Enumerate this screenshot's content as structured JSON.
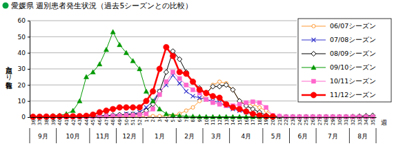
{
  "chart_data": {
    "type": "line",
    "title": "愛媛県 週別患者発生状況（過去5シーズンとの比較）",
    "y_label": "定点当たり報告数",
    "x_label": "週",
    "categories": [
      "36",
      "37",
      "38",
      "39",
      "40",
      "41",
      "42",
      "43",
      "44",
      "45",
      "46",
      "47",
      "48",
      "49",
      "50",
      "51",
      "52",
      "1",
      "2",
      "3",
      "4",
      "5",
      "6",
      "7",
      "8",
      "9",
      "10",
      "11",
      "12",
      "13",
      "14",
      "15",
      "16",
      "17",
      "18",
      "19",
      "20",
      "21",
      "22",
      "23",
      "24",
      "25",
      "26",
      "27",
      "28",
      "29",
      "30",
      "31",
      "32",
      "33",
      "34",
      "35"
    ],
    "month_groups": [
      {
        "label": "9月",
        "weeks": 4
      },
      {
        "label": "10月",
        "weeks": 5
      },
      {
        "label": "11月",
        "weeks": 4
      },
      {
        "label": "12月",
        "weeks": 4
      },
      {
        "label": "1月",
        "weeks": 5
      },
      {
        "label": "2月",
        "weeks": 4
      },
      {
        "label": "3月",
        "weeks": 4
      },
      {
        "label": "4月",
        "weeks": 5
      },
      {
        "label": "5月",
        "weeks": 4
      },
      {
        "label": "6月",
        "weeks": 4
      },
      {
        "label": "7月",
        "weeks": 5
      },
      {
        "label": "8月",
        "weeks": 4
      }
    ],
    "series": [
      {
        "name": "06/07シーズン",
        "color": "#ff9933",
        "marker": "circle-open",
        "line_style": "solid",
        "values": [
          0.1,
          0.1,
          0.1,
          0.1,
          0.1,
          0.1,
          0.2,
          0.2,
          0.2,
          0.2,
          0.3,
          0.3,
          0.3,
          0.4,
          0.4,
          0.5,
          0.5,
          0.5,
          0.6,
          0.6,
          0.8,
          1,
          2,
          4,
          6,
          10,
          14,
          20,
          22,
          21,
          17,
          10,
          8,
          8,
          6,
          4,
          1,
          0.5,
          0.2,
          0.2,
          0.2,
          0.2,
          0.2,
          0.2,
          0.2,
          0.2,
          0.2,
          0.2,
          0.2,
          0.2,
          0.2,
          0.2
        ]
      },
      {
        "name": "07/08シーズン",
        "color": "#3333cc",
        "marker": "x",
        "line_style": "solid",
        "values": [
          0.1,
          0.1,
          0.1,
          0.2,
          0.2,
          0.2,
          0.3,
          0.3,
          0.4,
          0.5,
          0.6,
          0.8,
          0.8,
          1,
          2,
          2,
          3,
          6,
          10,
          16,
          20,
          26,
          21,
          16,
          13,
          12,
          11,
          10,
          9,
          7,
          5,
          4,
          3,
          2,
          1,
          0.5,
          0.3,
          0.1,
          0.1,
          0.1,
          0.1,
          0.1,
          0.1,
          0.1,
          0.1,
          0.1,
          0.1,
          0.1,
          0.1,
          0.1,
          0.1,
          0.1
        ]
      },
      {
        "name": "08/09シーズン",
        "color": "#000000",
        "marker": "diamond-open",
        "line_style": "solid",
        "values": [
          0.1,
          0.1,
          0.2,
          0.2,
          0.2,
          0.3,
          0.3,
          0.4,
          0.5,
          0.6,
          0.8,
          1,
          1.2,
          1.5,
          1.5,
          1.8,
          2,
          4,
          8,
          16,
          28,
          41,
          36,
          28,
          22,
          18,
          15,
          19,
          19,
          20,
          17,
          10,
          7,
          5,
          3,
          1,
          0.5,
          0.3,
          0.2,
          0.2,
          0.2,
          0.2,
          0.2,
          0.2,
          0.2,
          0.2,
          0.2,
          0.2,
          0.3,
          0.5,
          0.8,
          1
        ]
      },
      {
        "name": "09/10シーズン",
        "color": "#009900",
        "marker": "triangle",
        "line_style": "solid",
        "values": [
          0.2,
          0.3,
          0.5,
          0.8,
          1,
          2,
          4,
          10,
          25,
          28,
          33,
          42,
          53,
          45,
          40,
          35,
          30,
          16,
          10,
          5,
          2,
          1.2,
          0.8,
          0.5,
          0.4,
          0.3,
          0.2,
          0.2,
          0.2,
          0.2,
          0.2,
          0.2,
          0.2,
          0.2,
          0.2,
          0.2,
          0.2,
          0.2,
          0.2,
          0.2,
          0.2,
          0.2,
          0.2,
          0.2,
          0.2,
          0.2,
          0.2,
          0.2,
          0.2,
          0.2,
          0.2,
          0.2
        ]
      },
      {
        "name": "10/11シーズン",
        "color": "#ff66cc",
        "marker": "square",
        "line_style": "solid",
        "values": [
          0.1,
          0.1,
          0.1,
          0.1,
          0.2,
          0.2,
          0.2,
          0.3,
          0.3,
          0.4,
          0.5,
          0.5,
          0.6,
          0.8,
          1,
          1,
          1.5,
          2,
          5,
          14,
          22,
          28,
          24,
          20,
          17,
          15,
          11,
          9,
          8,
          7,
          7,
          8,
          9,
          9.5,
          9,
          6,
          1,
          0.5,
          0.2,
          0.2,
          0.2,
          0.2,
          0.2,
          0.2,
          0.2,
          0.2,
          0.2,
          0.2,
          0.2,
          0.2,
          0.2,
          0.2
        ]
      },
      {
        "name": "11/12シーズン",
        "color": "#ff0000",
        "marker": "circle",
        "line_style": "bold",
        "values": [
          0.2,
          0.2,
          0.3,
          0.3,
          0.4,
          0.5,
          0.5,
          0.6,
          0.8,
          1.5,
          3,
          4,
          5,
          6,
          6,
          6,
          6,
          10,
          16,
          30,
          43.5,
          38,
          28,
          27,
          22,
          17,
          15,
          13,
          12,
          8,
          6,
          5,
          3.5,
          2,
          1,
          0.5,
          0.3,
          null,
          null,
          null,
          null,
          null,
          null,
          null,
          null,
          null,
          null,
          null,
          null,
          null,
          null,
          null
        ]
      }
    ],
    "ylim": [
      0,
      60
    ],
    "yticks": [
      0,
      10,
      20,
      30,
      40,
      50,
      60
    ],
    "grid": true,
    "legend": "upper right"
  }
}
